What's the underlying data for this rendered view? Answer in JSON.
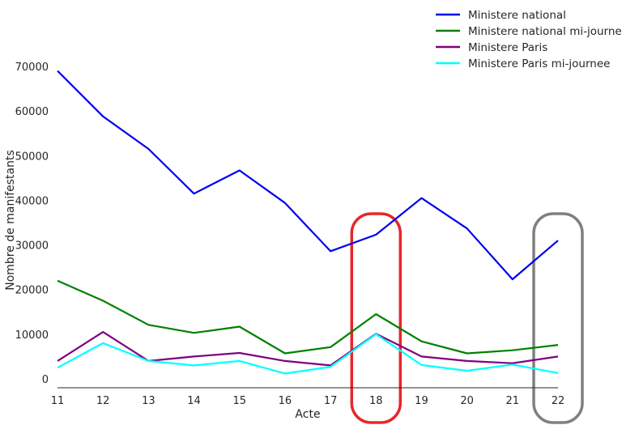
{
  "chart_data": {
    "type": "line",
    "xlabel": "Acte",
    "ylabel": "Nombre de manifestants",
    "x": [
      11,
      12,
      13,
      14,
      15,
      16,
      17,
      18,
      19,
      20,
      21,
      22
    ],
    "xlim": [
      11,
      22
    ],
    "ylim": [
      -2000,
      72000
    ],
    "yticks": [
      0,
      10000,
      20000,
      30000,
      40000,
      50000,
      60000,
      70000
    ],
    "grid": false,
    "legend_position": "top-right",
    "series": [
      {
        "name": "Ministere national",
        "color": "#0000ee",
        "values": [
          69000,
          58800,
          51500,
          41500,
          46700,
          39400,
          28600,
          32300,
          40500,
          33700,
          22300,
          31000
        ]
      },
      {
        "name": "Ministere national mi-journee",
        "color": "#008000",
        "values": [
          22000,
          17500,
          12100,
          10300,
          11700,
          5700,
          7100,
          14500,
          8400,
          5700,
          6400,
          7600
        ]
      },
      {
        "name": "Ministere Paris",
        "color": "#800080",
        "values": [
          4000,
          10500,
          4000,
          5000,
          5800,
          4000,
          3000,
          10100,
          5000,
          4000,
          3500,
          5000
        ]
      },
      {
        "name": "Ministere Paris mi-journee",
        "color": "#00ffff",
        "values": [
          2500,
          8000,
          4000,
          3000,
          4000,
          1200,
          2700,
          10000,
          3100,
          1800,
          3200,
          1300
        ]
      }
    ],
    "annotations": [
      {
        "type": "highlight",
        "x": 18,
        "color": "#e8262b"
      },
      {
        "type": "highlight",
        "x": 22,
        "color": "#808080"
      }
    ]
  }
}
